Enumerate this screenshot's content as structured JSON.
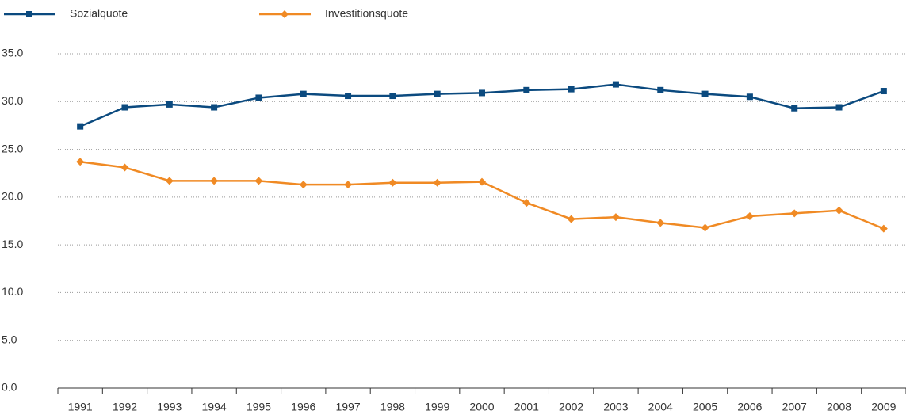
{
  "chart_data": {
    "type": "line",
    "categories": [
      "1991",
      "1992",
      "1993",
      "1994",
      "1995",
      "1996",
      "1997",
      "1998",
      "1999",
      "2000",
      "2001",
      "2002",
      "2003",
      "2004",
      "2005",
      "2006",
      "2007",
      "2008",
      "2009"
    ],
    "series": [
      {
        "name": "Sozialquote",
        "color": "#0b4a7f",
        "marker": "square",
        "values": [
          27.4,
          29.4,
          29.7,
          29.4,
          30.4,
          30.8,
          30.6,
          30.6,
          30.8,
          30.9,
          31.2,
          31.3,
          31.8,
          31.2,
          30.8,
          30.5,
          29.3,
          29.4,
          31.1
        ]
      },
      {
        "name": "Investitionsquote",
        "color": "#f08a24",
        "marker": "diamond",
        "values": [
          23.7,
          23.1,
          21.7,
          21.7,
          21.7,
          21.3,
          21.3,
          21.5,
          21.5,
          21.6,
          19.4,
          17.7,
          17.9,
          17.3,
          16.8,
          18.0,
          18.3,
          18.6,
          16.7
        ]
      }
    ],
    "ylim": [
      0,
      35
    ],
    "yticks": [
      {
        "value": 0,
        "label": "0.0"
      },
      {
        "value": 5,
        "label": "5.0"
      },
      {
        "value": 10,
        "label": "10.0"
      },
      {
        "value": 15,
        "label": "15.0"
      },
      {
        "value": 20,
        "label": "20.0"
      },
      {
        "value": 25,
        "label": "25.0"
      },
      {
        "value": 30,
        "label": "30.0"
      },
      {
        "value": 35,
        "label": "35.0"
      }
    ],
    "grid": true,
    "legend": "top"
  }
}
